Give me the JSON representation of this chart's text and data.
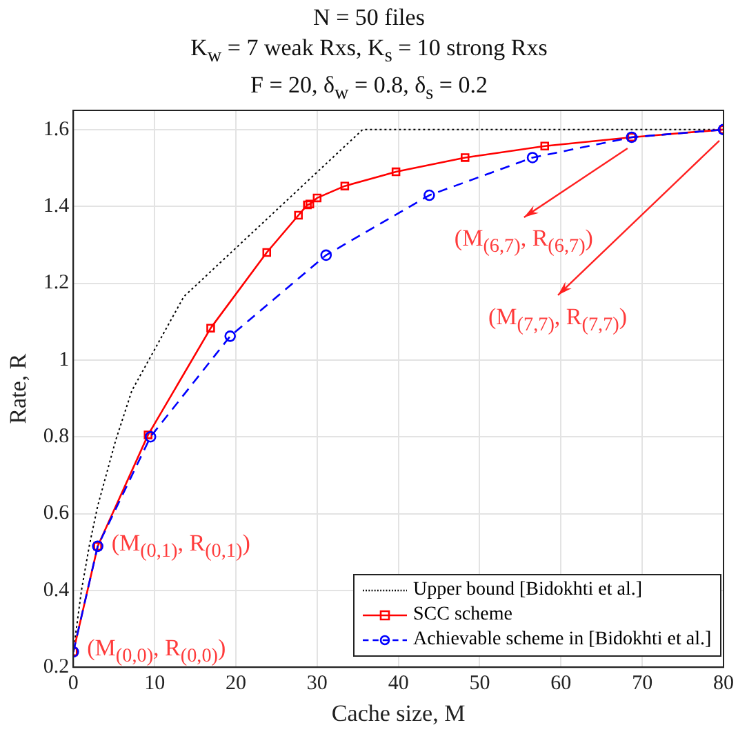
{
  "chart_data": {
    "type": "line",
    "title": "N = 50 files\nK$_{w}$ = 7 weak Rxs, K$_{s}$ = 10 strong Rxs\nF = 20, δ$_{w}$ = 0.8, δ$_{s}$ = 0.2",
    "xlabel": "Cache size, M",
    "ylabel": "Rate, R",
    "xlim": [
      0,
      80
    ],
    "xticks": [
      0,
      10,
      20,
      30,
      40,
      50,
      60,
      70,
      80
    ],
    "ylim": [
      0.2,
      1.65
    ],
    "yticks": [
      0.2,
      0.4,
      0.6,
      0.8,
      1,
      1.2,
      1.4,
      1.6
    ],
    "grid": true,
    "legend": "bottom right",
    "series": [
      {
        "name": "Upper bound [Bidokhti et al.]",
        "color": "#000000",
        "marker": "none",
        "line_style": "dotted",
        "x": [
          0,
          1,
          2,
          3,
          5.2,
          7.2,
          13.6,
          35.6,
          80
        ],
        "values": [
          0.24,
          0.4,
          0.52,
          0.62,
          0.79,
          0.92,
          1.165,
          1.6,
          1.6
        ]
      },
      {
        "name": "SCC scheme",
        "color": "#ff0000",
        "marker": "square",
        "line_style": "solid",
        "x": [
          0,
          3,
          9.2,
          16.9,
          23.8,
          27.7,
          28.8,
          29.1,
          30,
          33.4,
          39.7,
          48.2,
          58,
          68.7,
          80
        ],
        "values": [
          0.24,
          0.515,
          0.805,
          1.083,
          1.28,
          1.377,
          1.404,
          1.406,
          1.422,
          1.453,
          1.49,
          1.527,
          1.557,
          1.58,
          1.6
        ]
      },
      {
        "name": "Achievable scheme in [Bidokhti et al.]",
        "color": "#0000ff",
        "marker": "circle",
        "line_style": "dashed",
        "x": [
          0,
          3,
          9.5,
          19.3,
          31.1,
          43.8,
          56.5,
          68.7,
          80
        ],
        "values": [
          0.24,
          0.515,
          0.8,
          1.062,
          1.273,
          1.429,
          1.527,
          1.58,
          1.6
        ]
      }
    ],
    "annotations": [
      {
        "text": "(M$_{(0,0)}$, R$_{(0,0)}$)",
        "x": 0,
        "y": 0.24
      },
      {
        "text": "(M$_{(0,1)}$, R$_{(0,1)}$)",
        "x": 3,
        "y": 0.515
      },
      {
        "text": "(M$_{(6,7)}$, R$_{(6,7)}$)",
        "x": 68.7,
        "y": 1.58
      },
      {
        "text": "(M$_{(7,7)}$, R$_{(7,7)}$)",
        "x": 80,
        "y": 1.6
      }
    ]
  }
}
